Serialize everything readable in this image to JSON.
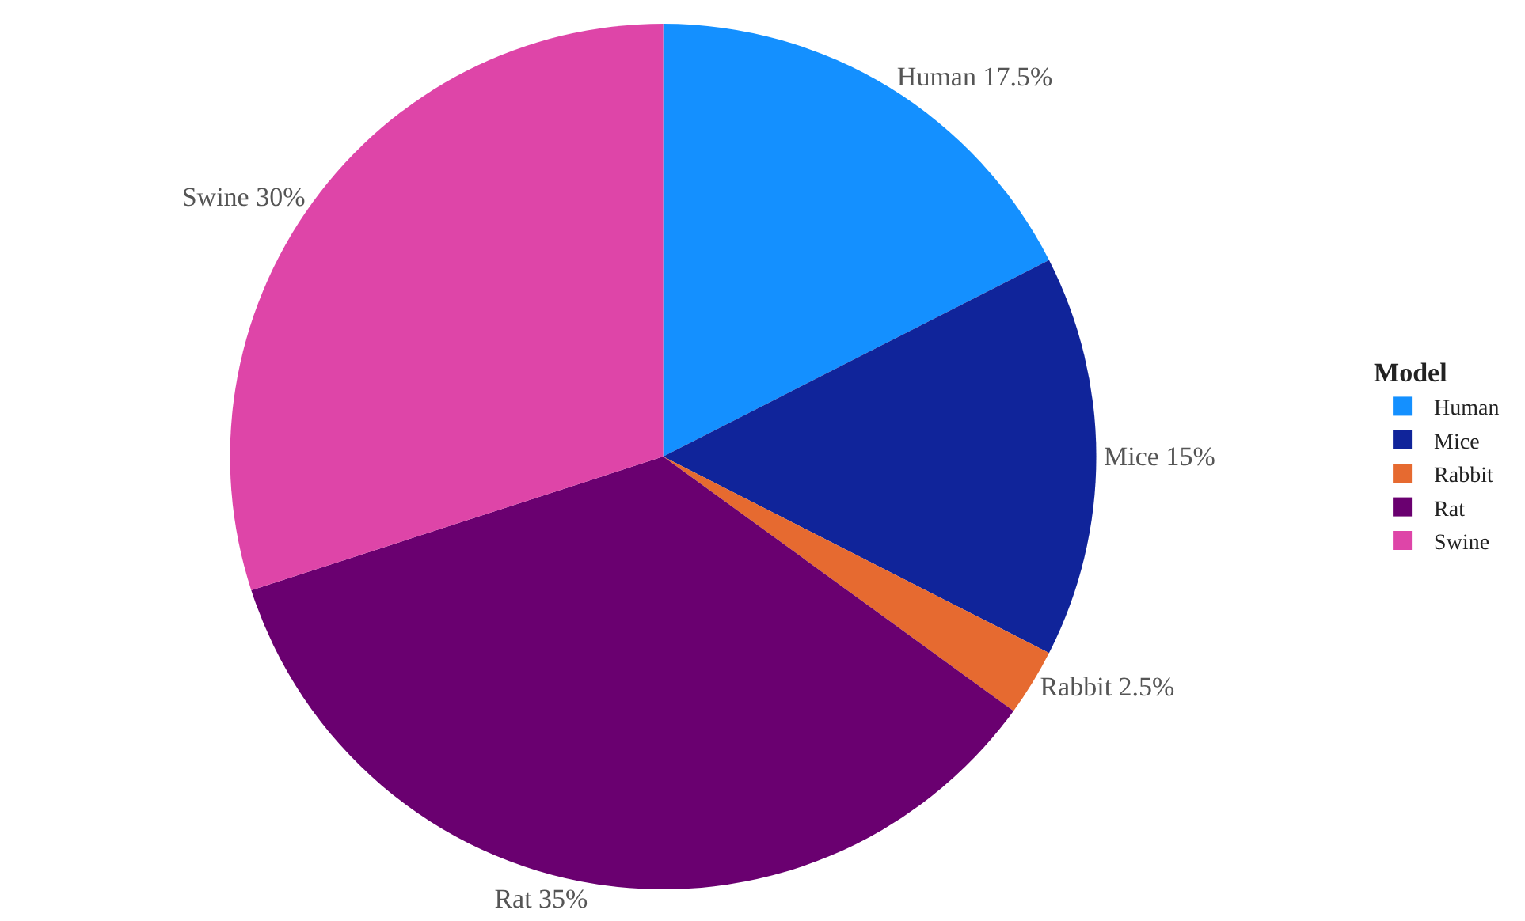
{
  "chart_data": {
    "type": "pie",
    "legend_title": "Model",
    "legend": "right",
    "categories": [
      "Human",
      "Mice",
      "Rabbit",
      "Rat",
      "Swine"
    ],
    "values": [
      17.5,
      15,
      2.5,
      35,
      30
    ],
    "colors": [
      "#1490ff",
      "#10249a",
      "#e66a30",
      "#6a0070",
      "#de45a8"
    ],
    "value_labels": [
      "Human 17.5%",
      "Mice 15%",
      "Rabbit 2.5%",
      "Rat 35%",
      "Swine 30%"
    ]
  }
}
